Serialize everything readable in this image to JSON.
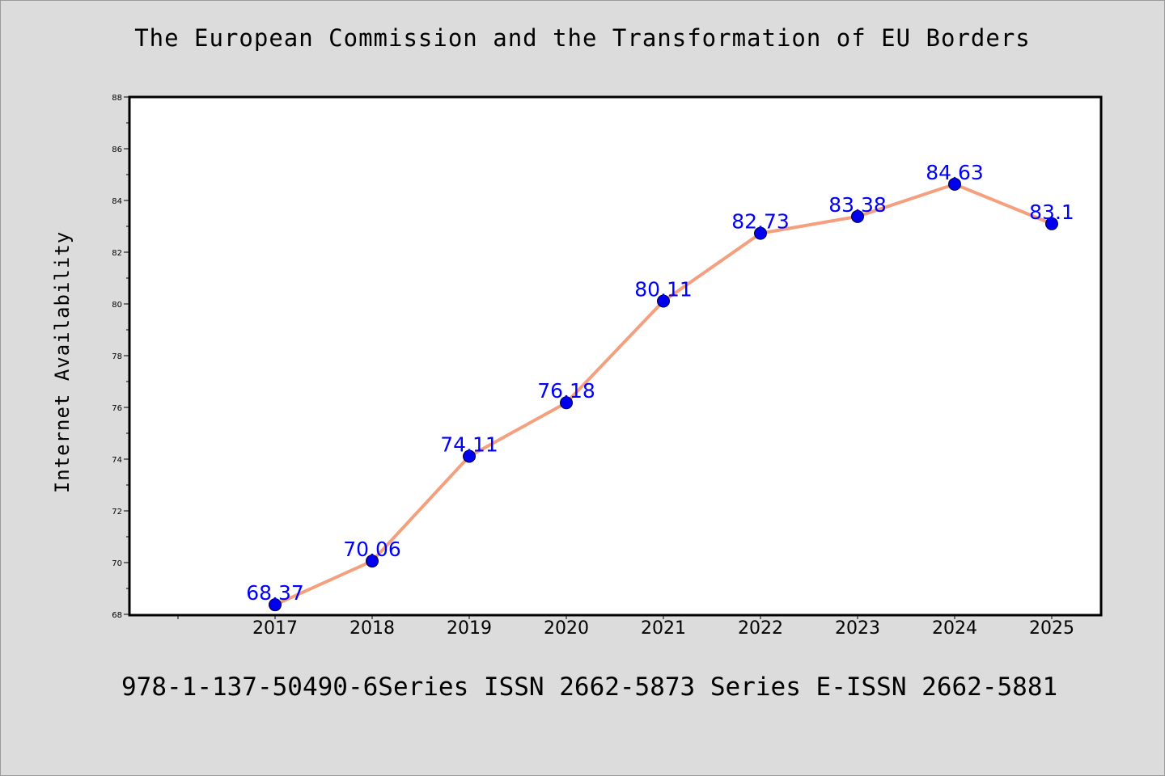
{
  "chart_data": {
    "type": "line",
    "title": "The European Commission and the Transformation of EU Borders",
    "xlabel": "",
    "ylabel": "Internet Availability",
    "x": [
      "2017",
      "2018",
      "2019",
      "2020",
      "2021",
      "2022",
      "2023",
      "2024",
      "2025"
    ],
    "series": [
      {
        "values": [
          68.37,
          70.06,
          74.11,
          76.18,
          80.11,
          82.73,
          83.38,
          84.63,
          83.1
        ]
      }
    ],
    "data_labels": [
      "68.37",
      "70.06",
      "74.11",
      "76.18",
      "80.11",
      "82.73",
      "83.38",
      "84.63",
      "83.1"
    ],
    "ylim": [
      68,
      88
    ],
    "yticks": [
      68,
      70,
      72,
      74,
      76,
      78,
      80,
      82,
      84,
      86,
      88
    ],
    "grid": false,
    "legend": "none",
    "colors": {
      "line": "#f4a07e",
      "marker": "#0000ee",
      "label": "#0000ff",
      "background": "#dcdcdc",
      "plot_background": "#ffffff"
    }
  },
  "footer": {
    "text": "978-1-137-50490-6Series ISSN 2662-5873 Series E-ISSN 2662-5881"
  }
}
